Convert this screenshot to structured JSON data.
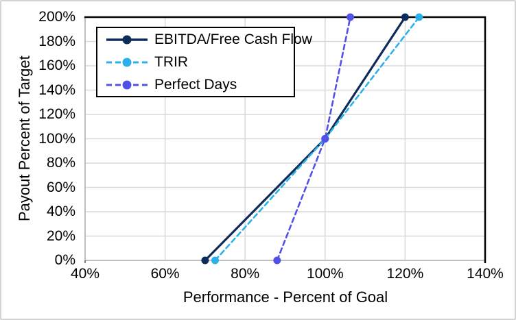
{
  "chart_data": {
    "type": "line",
    "title": "",
    "xlabel": "Performance - Percent of Goal",
    "ylabel": "Payout Percent of Target",
    "xlim": [
      40,
      140
    ],
    "ylim": [
      0,
      200
    ],
    "grid": true,
    "x_ticks": [
      {
        "value": 40,
        "label": "40%"
      },
      {
        "value": 60,
        "label": "60%"
      },
      {
        "value": 80,
        "label": "80%"
      },
      {
        "value": 100,
        "label": "100%"
      },
      {
        "value": 120,
        "label": "120%"
      },
      {
        "value": 140,
        "label": "140%"
      }
    ],
    "y_ticks": [
      {
        "value": 0,
        "label": "0%"
      },
      {
        "value": 20,
        "label": "20%"
      },
      {
        "value": 40,
        "label": "40%"
      },
      {
        "value": 60,
        "label": "60%"
      },
      {
        "value": 80,
        "label": "80%"
      },
      {
        "value": 100,
        "label": "100%"
      },
      {
        "value": 120,
        "label": "120%"
      },
      {
        "value": 140,
        "label": "140%"
      },
      {
        "value": 160,
        "label": "160%"
      },
      {
        "value": 180,
        "label": "180%"
      },
      {
        "value": 200,
        "label": "200%"
      }
    ],
    "axis_colors": {
      "gridline": "#D9D9D9",
      "axis_line": "#BFBFBF",
      "frame": "#000000"
    },
    "legend": {
      "position": "top-left-inside",
      "border_color": "#000000",
      "background": "#FFFFFF"
    },
    "series": [
      {
        "name": "EBITDA/Free Cash Flow",
        "color": "#0E2C59",
        "line_style": "solid",
        "marker": "circle",
        "points": [
          {
            "x": 70,
            "y": 0
          },
          {
            "x": 100,
            "y": 100
          },
          {
            "x": 120,
            "y": 200
          }
        ]
      },
      {
        "name": "TRIR",
        "color": "#2BB1E9",
        "line_style": "dashed",
        "marker": "circle",
        "points": [
          {
            "x": 72.5,
            "y": 0
          },
          {
            "x": 100,
            "y": 100
          },
          {
            "x": 123.5,
            "y": 200
          }
        ]
      },
      {
        "name": "Perfect Days",
        "color": "#5151E8",
        "line_style": "dashed",
        "marker": "circle",
        "points": [
          {
            "x": 88,
            "y": 0
          },
          {
            "x": 100,
            "y": 100
          },
          {
            "x": 106.3,
            "y": 200
          }
        ]
      }
    ]
  }
}
